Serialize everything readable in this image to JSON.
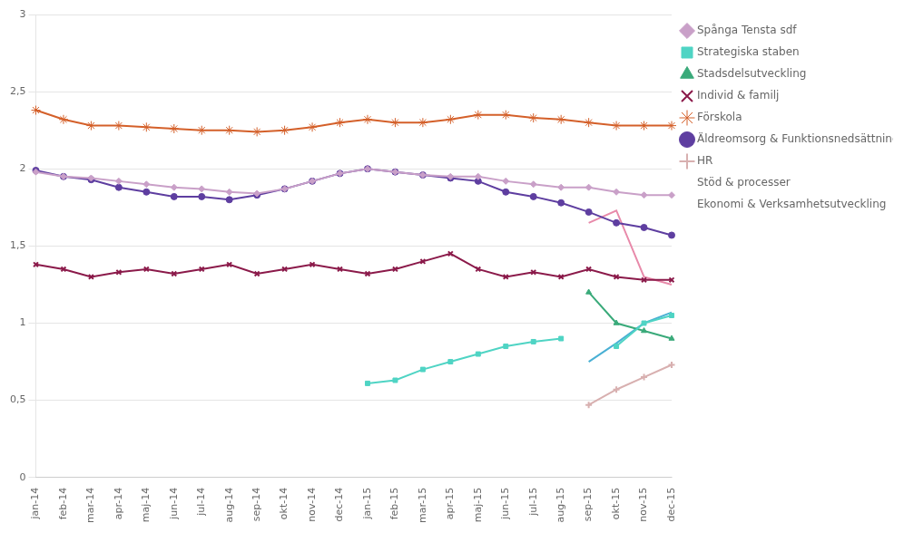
{
  "chart_data": {
    "type": "line",
    "categories": [
      "jan-14",
      "feb-14",
      "mar-14",
      "apr-14",
      "maj-14",
      "jun-14",
      "jul-14",
      "aug-14",
      "sep-14",
      "okt-14",
      "nov-14",
      "dec-14",
      "jan-15",
      "feb-15",
      "mar-15",
      "apr-15",
      "maj-15",
      "jun-15",
      "jul-15",
      "aug-15",
      "sep-15",
      "okt-15",
      "nov-15",
      "dec-15"
    ],
    "series": [
      {
        "name": "Spånga Tensta sdf",
        "color": "#c9a0c8",
        "marker": "diamond",
        "values": [
          1.98,
          1.95,
          1.94,
          1.92,
          1.9,
          1.88,
          1.87,
          1.85,
          1.84,
          1.87,
          1.92,
          1.97,
          2.0,
          1.98,
          1.96,
          1.95,
          1.95,
          1.92,
          1.9,
          1.88,
          1.88,
          1.85,
          1.83,
          1.83
        ]
      },
      {
        "name": "Strategiska staben",
        "color": "#4fd4c4",
        "marker": "square",
        "values": [
          null,
          null,
          null,
          null,
          null,
          null,
          null,
          null,
          null,
          null,
          null,
          null,
          0.61,
          0.63,
          0.7,
          0.75,
          0.8,
          0.85,
          0.88,
          0.9,
          null,
          0.85,
          1.0,
          1.05
        ]
      },
      {
        "name": "Stadsdelsutveckling",
        "color": "#3aaa7a",
        "marker": "triangle",
        "values": [
          null,
          null,
          null,
          null,
          null,
          null,
          null,
          null,
          null,
          null,
          null,
          null,
          null,
          null,
          null,
          null,
          null,
          null,
          null,
          null,
          1.2,
          1.0,
          0.95,
          0.9
        ]
      },
      {
        "name": "Individ & familj",
        "color": "#8b1a4a",
        "marker": "x",
        "values": [
          1.38,
          1.35,
          1.3,
          1.33,
          1.35,
          1.32,
          1.35,
          1.38,
          1.32,
          1.35,
          1.38,
          1.35,
          1.32,
          1.35,
          1.4,
          1.45,
          1.35,
          1.3,
          1.33,
          1.3,
          1.35,
          1.3,
          1.28,
          1.28
        ]
      },
      {
        "name": "Förskola",
        "color": "#d4602a",
        "marker": "star",
        "values": [
          2.38,
          2.32,
          2.28,
          2.28,
          2.27,
          2.26,
          2.25,
          2.25,
          2.24,
          2.25,
          2.27,
          2.3,
          2.32,
          2.3,
          2.3,
          2.32,
          2.35,
          2.35,
          2.33,
          2.32,
          2.3,
          2.28,
          2.28,
          2.28
        ]
      },
      {
        "name": "Äldreomsorg & Funktionsnedsättning",
        "color": "#5e3ea0",
        "marker": "circle",
        "values": [
          1.99,
          1.95,
          1.93,
          1.88,
          1.85,
          1.82,
          1.82,
          1.8,
          1.83,
          1.87,
          1.92,
          1.97,
          2.0,
          1.98,
          1.96,
          1.94,
          1.92,
          1.85,
          1.82,
          1.78,
          1.72,
          1.65,
          1.62,
          1.57
        ]
      },
      {
        "name": "HR",
        "color": "#d8b0b0",
        "marker": "plus",
        "values": [
          null,
          null,
          null,
          null,
          null,
          null,
          null,
          null,
          null,
          null,
          null,
          null,
          null,
          null,
          null,
          null,
          null,
          null,
          null,
          null,
          0.47,
          0.57,
          0.65,
          0.73
        ]
      },
      {
        "name": "Stöd & processer",
        "color": "#e88aaa",
        "marker": "none",
        "values": [
          null,
          null,
          null,
          null,
          null,
          null,
          null,
          null,
          null,
          null,
          null,
          null,
          null,
          null,
          null,
          null,
          null,
          null,
          null,
          null,
          1.65,
          1.73,
          1.3,
          1.25
        ]
      },
      {
        "name": "Ekonomi & Verksamhetsutveckling",
        "color": "#4ab0d4",
        "marker": "none",
        "values": [
          null,
          null,
          null,
          null,
          null,
          null,
          null,
          null,
          null,
          null,
          null,
          null,
          null,
          null,
          null,
          null,
          null,
          null,
          null,
          null,
          0.75,
          0.87,
          1.0,
          1.07
        ]
      }
    ],
    "ylim": [
      0,
      3
    ],
    "yticks": [
      0,
      {
        "value": 0.5,
        "label": "0,5"
      },
      1,
      {
        "value": 1.5,
        "label": "1,5"
      },
      2,
      {
        "value": 2.5,
        "label": "2,5"
      },
      3
    ],
    "grid": "y",
    "legend": "right"
  }
}
